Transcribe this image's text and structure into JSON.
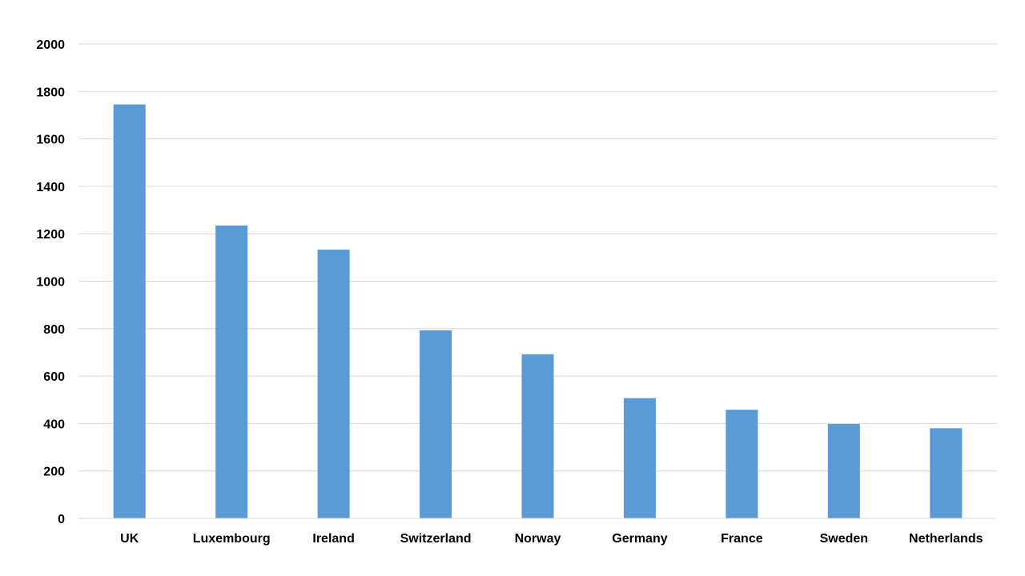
{
  "chart_data": {
    "type": "bar",
    "categories": [
      "UK",
      "Luxembourg",
      "Ireland",
      "Switzerland",
      "Norway",
      "Germany",
      "France",
      "Sweden",
      "Netherlands"
    ],
    "values": [
      1745,
      1235,
      1133,
      793,
      692,
      507,
      458,
      398,
      380
    ],
    "ylim": [
      0,
      2000
    ],
    "yticks": [
      0,
      200,
      400,
      600,
      800,
      1000,
      1200,
      1400,
      1600,
      1800,
      2000
    ],
    "grid": true,
    "legend": "none",
    "bar_color": "#5b9bd5",
    "title": "",
    "xlabel": "",
    "ylabel": ""
  }
}
